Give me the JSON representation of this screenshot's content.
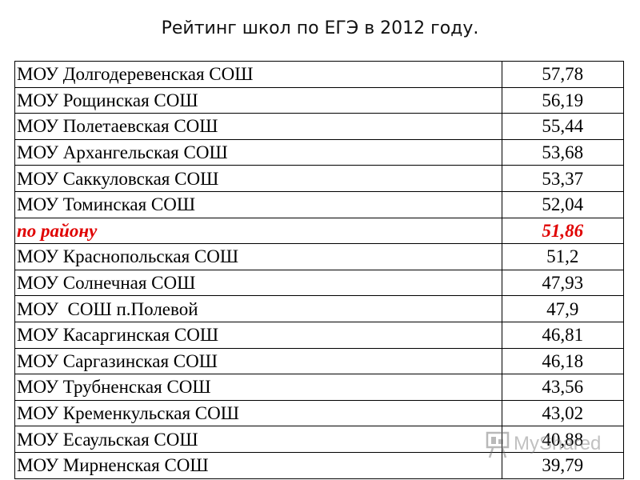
{
  "page": {
    "title": "Рейтинг школ по ЕГЭ в 2012 году."
  },
  "table": {
    "rows": [
      {
        "name": "МОУ Долгодеревенская СОШ",
        "score": "57,78"
      },
      {
        "name": "МОУ Рощинская СОШ",
        "score": "56,19"
      },
      {
        "name": "МОУ Полетаевская СОШ",
        "score": "55,44"
      },
      {
        "name": "МОУ Архангельская СОШ",
        "score": "53,68"
      },
      {
        "name": "МОУ Саккуловская СОШ",
        "score": "53,37"
      },
      {
        "name": "МОУ Томинская СОШ",
        "score": "52,04"
      },
      {
        "name": "по району",
        "score": "51,86",
        "highlight": true
      },
      {
        "name": "МОУ Краснопольская СОШ",
        "score": "51,2"
      },
      {
        "name": "МОУ Солнечная СОШ",
        "score": "47,93"
      },
      {
        "name": "МОУ  СОШ п.Полевой",
        "score": "47,9"
      },
      {
        "name": "МОУ Касаргинская СОШ",
        "score": "46,81"
      },
      {
        "name": "МОУ Саргазинская СОШ",
        "score": "46,18"
      },
      {
        "name": "МОУ Трубненская СОШ",
        "score": "43,56"
      },
      {
        "name": "МОУ Кременкульская СОШ",
        "score": "43,02"
      },
      {
        "name": "МОУ Есаульская СОШ",
        "score": "40,88"
      },
      {
        "name": "МОУ Мирненская СОШ",
        "score": "39,79"
      }
    ],
    "highlight_color": "#e00000"
  },
  "watermark": {
    "text": "MyShared",
    "icon": "presentation-board-icon"
  }
}
